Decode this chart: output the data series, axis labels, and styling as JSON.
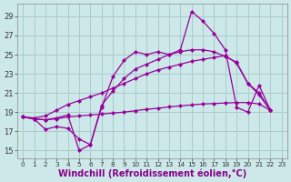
{
  "background_color": "#cce8e8",
  "grid_color": "#aacccc",
  "line_color": "#990099",
  "xlabel": "Windchill (Refroidissement éolien,°C)",
  "xlabel_fontsize": 7.0,
  "ylabel_ticks": [
    15,
    17,
    19,
    21,
    23,
    25,
    27,
    29
  ],
  "xlim": [
    -0.5,
    23.5
  ],
  "ylim": [
    14.2,
    30.3
  ],
  "series": [
    {
      "x": [
        0,
        1,
        2,
        3,
        4,
        5,
        6,
        7,
        8,
        9,
        10,
        11,
        12,
        13,
        14,
        15,
        16,
        17,
        18,
        19,
        20,
        21,
        22
      ],
      "y": [
        18.5,
        18.3,
        18.2,
        18.4,
        18.7,
        15.0,
        15.6,
        19.5,
        22.7,
        24.4,
        25.3,
        25.0,
        25.3,
        25.0,
        25.5,
        29.5,
        28.5,
        27.2,
        25.5,
        19.5,
        19.0,
        21.8,
        19.2
      ]
    },
    {
      "x": [
        0,
        1,
        2,
        3,
        4,
        5,
        6,
        7,
        8,
        9,
        10,
        11,
        12,
        13,
        14,
        15,
        16,
        17,
        18,
        19,
        20,
        21,
        22
      ],
      "y": [
        18.5,
        18.3,
        17.2,
        17.5,
        17.3,
        16.2,
        15.6,
        19.7,
        21.2,
        22.5,
        23.5,
        24.0,
        24.5,
        25.0,
        25.3,
        25.5,
        25.5,
        25.3,
        24.8,
        24.2,
        22.0,
        21.0,
        19.2
      ]
    },
    {
      "x": [
        0,
        1,
        2,
        3,
        4,
        5,
        6,
        7,
        8,
        9,
        10,
        11,
        12,
        13,
        14,
        15,
        16,
        17,
        18,
        19,
        20,
        21,
        22
      ],
      "y": [
        18.5,
        18.4,
        18.6,
        19.2,
        19.8,
        20.2,
        20.6,
        21.0,
        21.5,
        22.0,
        22.5,
        23.0,
        23.4,
        23.7,
        24.0,
        24.3,
        24.5,
        24.7,
        24.9,
        24.1,
        22.0,
        20.8,
        19.2
      ]
    },
    {
      "x": [
        0,
        1,
        2,
        3,
        4,
        5,
        6,
        7,
        8,
        9,
        10,
        11,
        12,
        13,
        14,
        15,
        16,
        17,
        18,
        19,
        20,
        21,
        22
      ],
      "y": [
        18.5,
        18.3,
        18.2,
        18.3,
        18.5,
        18.6,
        18.7,
        18.8,
        18.9,
        19.0,
        19.15,
        19.3,
        19.4,
        19.55,
        19.65,
        19.75,
        19.85,
        19.9,
        19.95,
        20.0,
        20.0,
        19.85,
        19.2
      ]
    }
  ]
}
